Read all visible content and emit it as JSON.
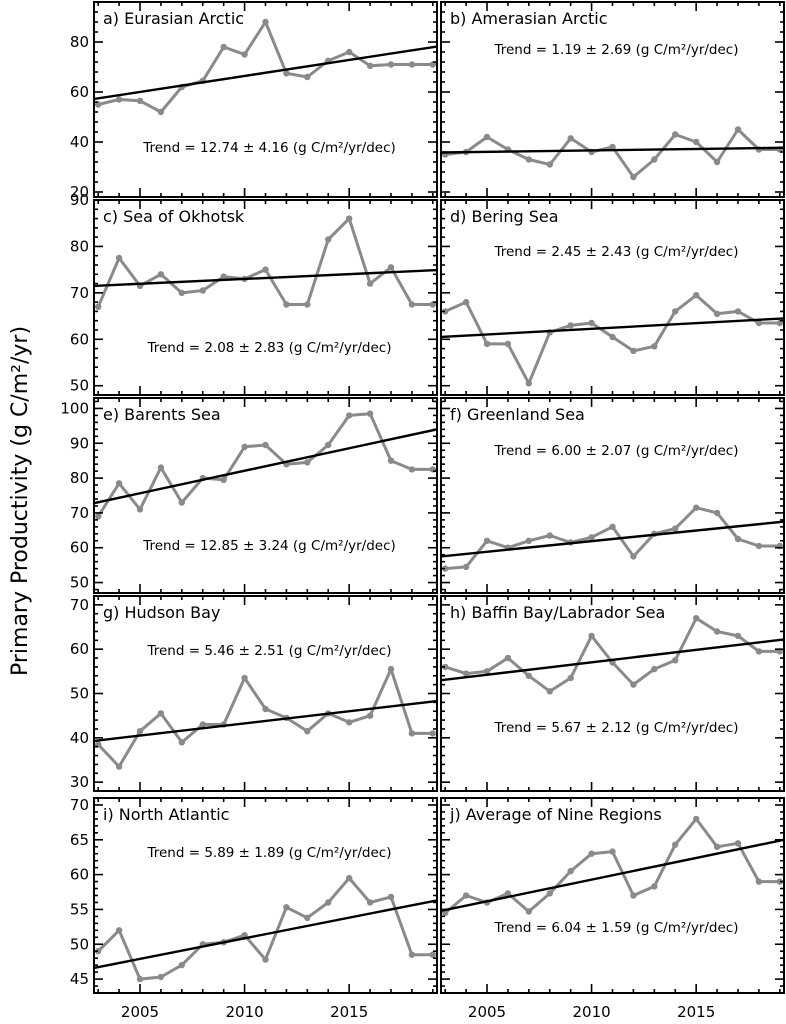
{
  "figure": {
    "ylabel": "Primary Productivity (g C/m²/yr)",
    "x_ticks": [
      2005,
      2010,
      2015
    ],
    "xlim": [
      2002.8,
      2019.2
    ]
  },
  "colors": {
    "series": "#8a8a8a",
    "trend": "#000000",
    "frame": "#000000"
  },
  "chart_data": [
    {
      "type": "line",
      "title": "a) Eurasian Arctic",
      "trend_label": "Trend = 12.74 ± 4.16 (g C/m²/yr/dec)",
      "ylim": [
        18,
        96
      ],
      "yticks": [
        20,
        40,
        60,
        80
      ],
      "x": [
        2003,
        2004,
        2005,
        2006,
        2007,
        2008,
        2009,
        2010,
        2011,
        2012,
        2013,
        2014,
        2015,
        2016,
        2017,
        2018,
        2019
      ],
      "values": [
        55,
        57,
        56.5,
        52,
        62,
        64.5,
        78,
        75,
        88,
        67.5,
        66,
        72.5,
        76,
        70.5,
        71,
        71,
        71
      ],
      "trend_line": {
        "x": [
          2002.8,
          2019.2
        ],
        "y": [
          57.2,
          78.2
        ]
      }
    },
    {
      "type": "line",
      "title": "b) Amerasian Arctic",
      "trend_label": "Trend = 1.19 ± 2.69 (g C/m²/yr/dec)",
      "ylim": [
        18,
        96
      ],
      "yticks": [
        20,
        40,
        60,
        80
      ],
      "x": [
        2003,
        2004,
        2005,
        2006,
        2007,
        2008,
        2009,
        2010,
        2011,
        2012,
        2013,
        2014,
        2015,
        2016,
        2017,
        2018,
        2019
      ],
      "values": [
        35,
        36,
        42,
        37,
        33,
        31,
        41.5,
        36,
        38,
        26,
        33,
        43,
        40,
        32,
        45,
        37,
        37
      ],
      "trend_line": {
        "x": [
          2002.8,
          2019.2
        ],
        "y": [
          35.8,
          37.7
        ]
      }
    },
    {
      "type": "line",
      "title": "c) Sea of Okhotsk",
      "trend_label": "Trend = 2.08 ± 2.83 (g C/m²/yr/dec)",
      "ylim": [
        48,
        90
      ],
      "yticks": [
        50,
        60,
        70,
        80,
        90
      ],
      "x": [
        2003,
        2004,
        2005,
        2006,
        2007,
        2008,
        2009,
        2010,
        2011,
        2012,
        2013,
        2014,
        2015,
        2016,
        2017,
        2018,
        2019
      ],
      "values": [
        67,
        77.5,
        71.5,
        74,
        70,
        70.5,
        73.5,
        73,
        75,
        67.5,
        67.5,
        81.5,
        86,
        72,
        75.5,
        67.5,
        67.5
      ],
      "trend_line": {
        "x": [
          2002.8,
          2019.2
        ],
        "y": [
          71.5,
          74.9
        ]
      }
    },
    {
      "type": "line",
      "title": "d) Bering Sea",
      "trend_label": "Trend = 2.45 ± 2.43 (g C/m²/yr/dec)",
      "ylim": [
        48,
        90
      ],
      "yticks": [
        50,
        60,
        70
      ],
      "x": [
        2003,
        2004,
        2005,
        2006,
        2007,
        2008,
        2009,
        2010,
        2011,
        2012,
        2013,
        2014,
        2015,
        2016,
        2017,
        2018,
        2019
      ],
      "values": [
        66,
        68,
        59,
        59,
        50.5,
        61.5,
        63,
        63.5,
        60.5,
        57.5,
        58.5,
        66,
        69.5,
        65.5,
        66,
        63.5,
        63.5
      ],
      "trend_line": {
        "x": [
          2002.8,
          2019.2
        ],
        "y": [
          60.5,
          64.5
        ]
      }
    },
    {
      "type": "line",
      "title": "e) Barents Sea",
      "trend_label": "Trend = 12.85 ± 3.24 (g C/m²/yr/dec)",
      "ylim": [
        47,
        103
      ],
      "yticks": [
        50,
        60,
        70,
        80,
        90,
        100
      ],
      "x": [
        2003,
        2004,
        2005,
        2006,
        2007,
        2008,
        2009,
        2010,
        2011,
        2012,
        2013,
        2014,
        2015,
        2016,
        2017,
        2018,
        2019
      ],
      "values": [
        69,
        78.5,
        71,
        83,
        73,
        80,
        79.5,
        89,
        89.5,
        84,
        84.5,
        89.5,
        98,
        98.5,
        85,
        82.5,
        82.5
      ],
      "trend_line": {
        "x": [
          2002.8,
          2019.2
        ],
        "y": [
          72.8,
          94
        ]
      }
    },
    {
      "type": "line",
      "title": "f) Greenland Sea",
      "trend_label": "Trend = 6.00 ± 2.07 (g C/m²/yr/dec)",
      "ylim": [
        47,
        103
      ],
      "yticks": [
        50,
        60,
        70,
        80,
        90,
        100
      ],
      "x": [
        2003,
        2004,
        2005,
        2006,
        2007,
        2008,
        2009,
        2010,
        2011,
        2012,
        2013,
        2014,
        2015,
        2016,
        2017,
        2018,
        2019
      ],
      "values": [
        54,
        54.5,
        62,
        60,
        62,
        63.5,
        61.5,
        63,
        66,
        57.5,
        64,
        65.5,
        71.5,
        70,
        62.5,
        60.5,
        60.5
      ],
      "trend_line": {
        "x": [
          2002.8,
          2019.2
        ],
        "y": [
          57.5,
          67.5
        ]
      }
    },
    {
      "type": "line",
      "title": "g) Hudson Bay",
      "trend_label": "Trend = 5.46 ± 2.51 (g C/m²/yr/dec)",
      "ylim": [
        28,
        72
      ],
      "yticks": [
        30,
        40,
        50,
        60,
        70
      ],
      "x": [
        2003,
        2004,
        2005,
        2006,
        2007,
        2008,
        2009,
        2010,
        2011,
        2012,
        2013,
        2014,
        2015,
        2016,
        2017,
        2018,
        2019
      ],
      "values": [
        38.5,
        33.5,
        41.5,
        45.5,
        39,
        43,
        43,
        53.5,
        46.5,
        44.5,
        41.5,
        45.5,
        43.5,
        45,
        55.5,
        41,
        41
      ],
      "trend_line": {
        "x": [
          2002.8,
          2019.2
        ],
        "y": [
          39.3,
          48.3
        ]
      }
    },
    {
      "type": "line",
      "title": "h) Baffin Bay/Labrador Sea",
      "trend_label": "Trend = 5.67 ± 2.12 (g C/m²/yr/dec)",
      "ylim": [
        28,
        72
      ],
      "yticks": [
        30,
        40,
        50,
        60,
        70
      ],
      "x": [
        2003,
        2004,
        2005,
        2006,
        2007,
        2008,
        2009,
        2010,
        2011,
        2012,
        2013,
        2014,
        2015,
        2016,
        2017,
        2018,
        2019
      ],
      "values": [
        56,
        54.5,
        55,
        58,
        54,
        50.5,
        53.5,
        63,
        57,
        52,
        55.5,
        57.5,
        67,
        64,
        63,
        59.5,
        59.5
      ],
      "trend_line": {
        "x": [
          2002.8,
          2019.2
        ],
        "y": [
          53,
          62.2
        ]
      }
    },
    {
      "type": "line",
      "title": "i) North Atlantic",
      "trend_label": "Trend = 5.89 ± 1.89 (g C/m²/yr/dec)",
      "ylim": [
        43,
        71
      ],
      "yticks": [
        45,
        50,
        55,
        60,
        65,
        70
      ],
      "x": [
        2003,
        2004,
        2005,
        2006,
        2007,
        2008,
        2009,
        2010,
        2011,
        2012,
        2013,
        2014,
        2015,
        2016,
        2017,
        2018,
        2019
      ],
      "values": [
        49,
        52,
        45,
        45.3,
        47,
        50,
        50.3,
        51.3,
        47.8,
        55.3,
        53.8,
        56,
        59.5,
        56,
        56.8,
        48.5,
        48.5
      ],
      "trend_line": {
        "x": [
          2002.8,
          2019.2
        ],
        "y": [
          46.6,
          56.3
        ]
      }
    },
    {
      "type": "line",
      "title": "j) Average of Nine Regions",
      "trend_label": "Trend = 6.04 ± 1.59 (g C/m²/yr/dec)",
      "ylim": [
        43,
        71
      ],
      "yticks": [
        45,
        50,
        55,
        60,
        65,
        70
      ],
      "x": [
        2003,
        2004,
        2005,
        2006,
        2007,
        2008,
        2009,
        2010,
        2011,
        2012,
        2013,
        2014,
        2015,
        2016,
        2017,
        2018,
        2019
      ],
      "values": [
        54.5,
        57,
        56,
        57.3,
        54.7,
        57.3,
        60.5,
        63,
        63.3,
        57,
        58.3,
        64.3,
        68,
        64,
        64.5,
        59,
        59
      ],
      "trend_line": {
        "x": [
          2002.8,
          2019.2
        ],
        "y": [
          54.8,
          65
        ]
      }
    }
  ]
}
